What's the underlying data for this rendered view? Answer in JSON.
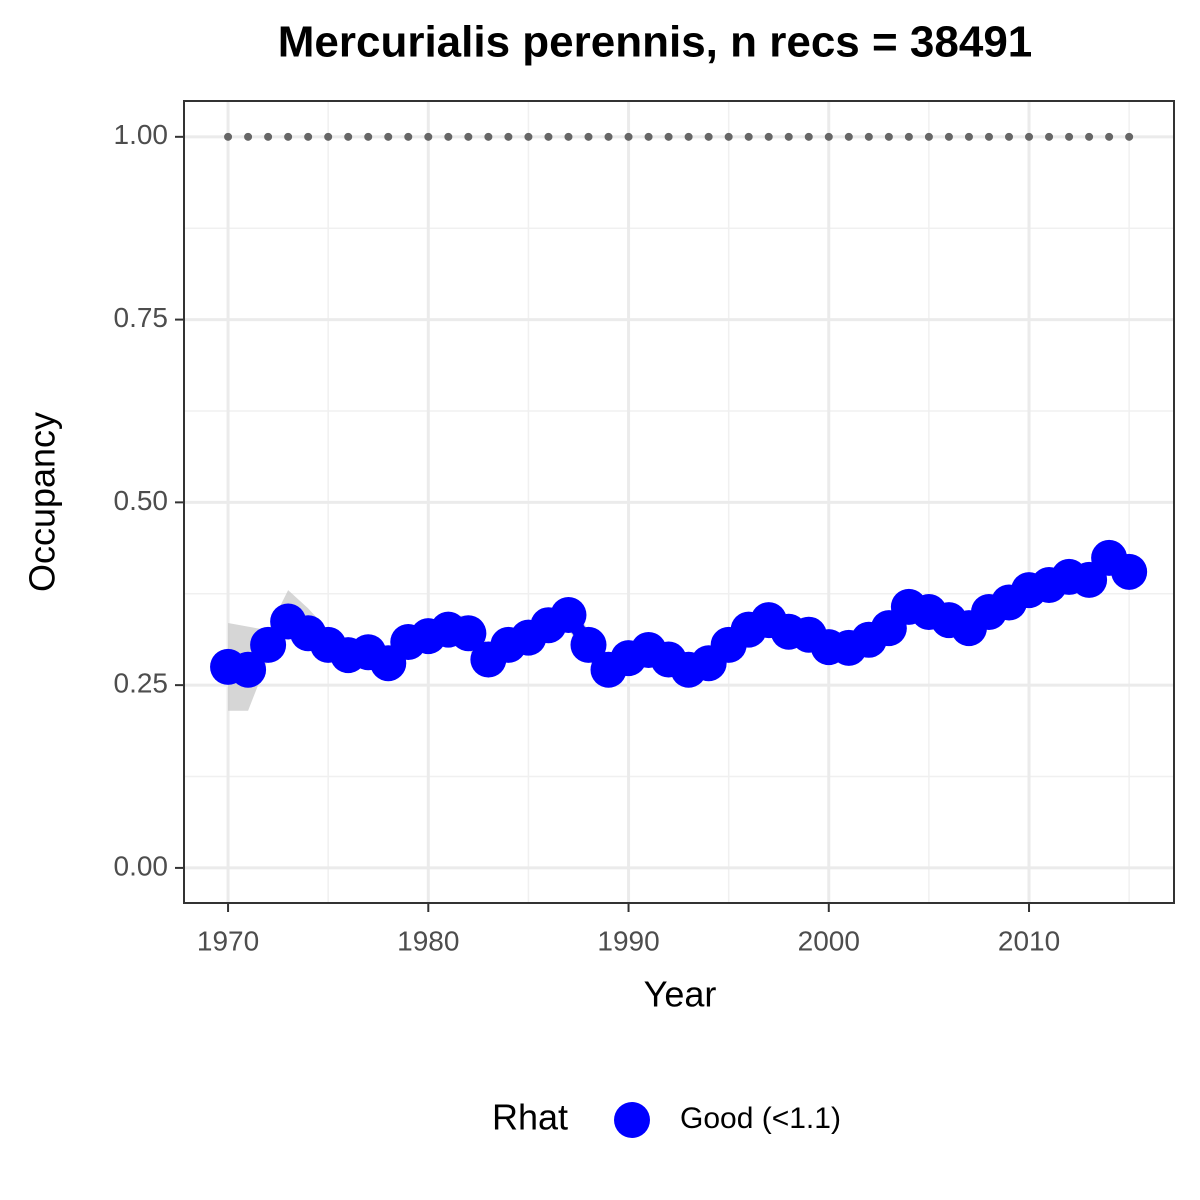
{
  "chart_data": {
    "type": "line",
    "title": "Mercurialis perennis, n recs = 38491",
    "x_label": "Year",
    "y_label": "Occupancy",
    "legend_title": "Rhat",
    "x": [
      1970,
      1971,
      1972,
      1973,
      1974,
      1975,
      1976,
      1977,
      1978,
      1979,
      1980,
      1981,
      1982,
      1983,
      1984,
      1985,
      1986,
      1987,
      1988,
      1989,
      1990,
      1991,
      1992,
      1993,
      1994,
      1995,
      1996,
      1997,
      1998,
      1999,
      2000,
      2001,
      2002,
      2003,
      2004,
      2005,
      2006,
      2007,
      2008,
      2009,
      2010,
      2011,
      2012,
      2013,
      2014,
      2015
    ],
    "series": [
      {
        "name": "Good (<1.1)",
        "color": "#0000ff",
        "values": [
          0.275,
          0.271,
          0.305,
          0.337,
          0.321,
          0.305,
          0.291,
          0.295,
          0.28,
          0.309,
          0.317,
          0.326,
          0.321,
          0.285,
          0.305,
          0.315,
          0.332,
          0.346,
          0.305,
          0.271,
          0.287,
          0.298,
          0.285,
          0.271,
          0.28,
          0.305,
          0.326,
          0.339,
          0.323,
          0.319,
          0.302,
          0.301,
          0.312,
          0.328,
          0.357,
          0.35,
          0.339,
          0.328,
          0.35,
          0.363,
          0.38,
          0.387,
          0.398,
          0.394,
          0.424,
          0.405
        ]
      }
    ],
    "ribbon": {
      "color": "#c8c8c8",
      "lower": [
        0.215,
        0.215,
        0.285,
        0.315,
        0.3,
        0.285,
        0.27,
        0.275,
        0.26,
        0.29,
        0.3,
        0.31,
        0.3,
        0.26,
        0.285,
        0.295,
        0.312,
        0.326,
        0.285,
        0.251,
        0.267,
        0.278,
        0.265,
        0.251,
        0.26,
        0.285,
        0.306,
        0.319,
        0.303,
        0.299,
        0.282,
        0.281,
        0.292,
        0.308,
        0.337,
        0.33,
        0.319,
        0.308,
        0.33,
        0.343,
        0.36,
        0.367,
        0.378,
        0.374,
        0.404,
        0.385
      ],
      "upper": [
        0.335,
        0.33,
        0.325,
        0.38,
        0.355,
        0.325,
        0.31,
        0.315,
        0.3,
        0.33,
        0.335,
        0.345,
        0.345,
        0.305,
        0.325,
        0.335,
        0.352,
        0.366,
        0.325,
        0.291,
        0.307,
        0.318,
        0.305,
        0.291,
        0.3,
        0.325,
        0.346,
        0.359,
        0.343,
        0.339,
        0.322,
        0.321,
        0.332,
        0.348,
        0.377,
        0.37,
        0.359,
        0.348,
        0.37,
        0.383,
        0.4,
        0.407,
        0.418,
        0.414,
        0.444,
        0.425
      ]
    },
    "hline": 1,
    "hline_color": "#666666",
    "xlim": [
      1967.8,
      2017.24
    ],
    "ylim": [
      -0.048,
      1.049
    ],
    "xticks": [
      1970,
      1980,
      1990,
      2000,
      2010
    ],
    "yticks": [
      {
        "value": 0,
        "label": "0.00"
      },
      {
        "value": 0.25,
        "label": "0.25"
      },
      {
        "value": 0.5,
        "label": "0.50"
      },
      {
        "value": 0.75,
        "label": "0.75"
      },
      {
        "value": 1,
        "label": "1.00"
      }
    ],
    "x_minor_grid": [
      1975,
      1985,
      1995,
      2005,
      2015
    ],
    "y_minor_grid": [
      0.125,
      0.375,
      0.625,
      0.875
    ],
    "grid": true,
    "legend_position": "bottom"
  }
}
